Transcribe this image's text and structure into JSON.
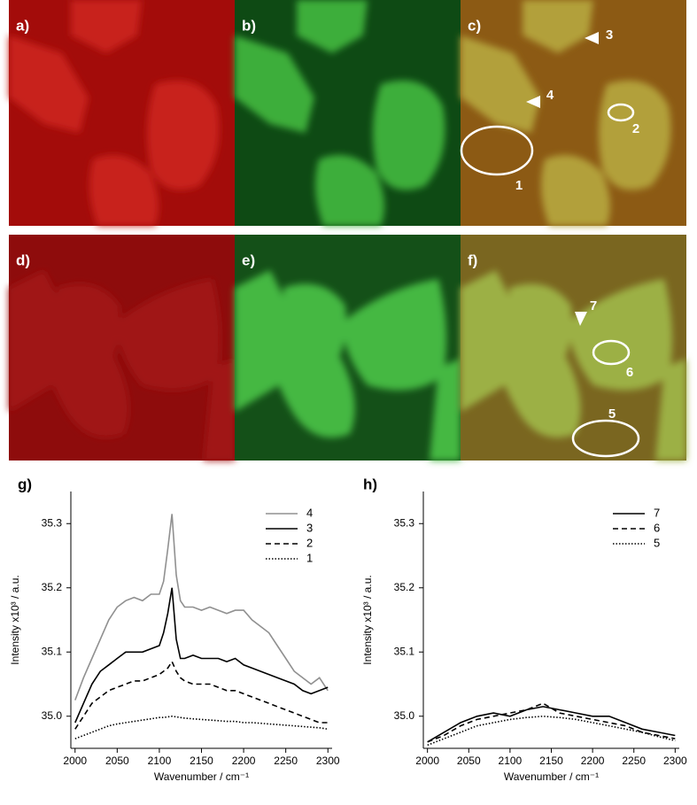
{
  "panels": {
    "labels": [
      "a)",
      "b)",
      "c)",
      "d)",
      "e)",
      "f)"
    ],
    "annotations": [
      "1",
      "2",
      "3",
      "4",
      "5",
      "6",
      "7"
    ]
  },
  "chart_data": [
    {
      "type": "line",
      "panel_label": "g)",
      "xlabel": "Wavenumber / cm⁻¹",
      "ylabel": "Intensity x10³ / a.u.",
      "x": [
        2000,
        2010,
        2020,
        2030,
        2040,
        2050,
        2060,
        2070,
        2080,
        2090,
        2100,
        2105,
        2110,
        2115,
        2120,
        2125,
        2130,
        2140,
        2150,
        2160,
        2170,
        2180,
        2190,
        2200,
        2210,
        2220,
        2230,
        2240,
        2250,
        2260,
        2270,
        2280,
        2290,
        2300
      ],
      "xlim": [
        1995,
        2305
      ],
      "xticks": [
        2000,
        2050,
        2100,
        2150,
        2200,
        2250,
        2300
      ],
      "ylim": [
        34.95,
        35.35
      ],
      "yticks": [
        {
          "value": 35,
          "label": "35.0"
        },
        35.1,
        35.2,
        35.3
      ],
      "legend": "upper right",
      "series": [
        {
          "name": "4",
          "color": "#909090",
          "dash": "solid",
          "values": [
            35.025,
            35.06,
            35.09,
            35.12,
            35.15,
            35.17,
            35.18,
            35.185,
            35.18,
            35.19,
            35.19,
            35.21,
            35.26,
            35.315,
            35.22,
            35.18,
            35.17,
            35.17,
            35.165,
            35.17,
            35.165,
            35.16,
            35.165,
            35.165,
            35.15,
            35.14,
            35.13,
            35.11,
            35.09,
            35.07,
            35.06,
            35.05,
            35.06,
            35.04
          ]
        },
        {
          "name": "3",
          "color": "#000000",
          "dash": "solid",
          "values": [
            34.99,
            35.02,
            35.05,
            35.07,
            35.08,
            35.09,
            35.1,
            35.1,
            35.1,
            35.105,
            35.11,
            35.13,
            35.16,
            35.2,
            35.12,
            35.09,
            35.09,
            35.095,
            35.09,
            35.09,
            35.09,
            35.085,
            35.09,
            35.08,
            35.075,
            35.07,
            35.065,
            35.06,
            35.055,
            35.05,
            35.04,
            35.035,
            35.04,
            35.045
          ]
        },
        {
          "name": "2",
          "color": "#000000",
          "dash": "dashed",
          "values": [
            34.98,
            35.0,
            35.02,
            35.03,
            35.04,
            35.045,
            35.05,
            35.055,
            35.055,
            35.06,
            35.065,
            35.07,
            35.075,
            35.085,
            35.07,
            35.06,
            35.055,
            35.05,
            35.05,
            35.05,
            35.045,
            35.04,
            35.04,
            35.035,
            35.03,
            35.025,
            35.02,
            35.015,
            35.01,
            35.005,
            35.0,
            34.995,
            34.99,
            34.99
          ]
        },
        {
          "name": "1",
          "color": "#000000",
          "dash": "dotted",
          "values": [
            34.965,
            34.97,
            34.975,
            34.98,
            34.985,
            34.988,
            34.99,
            34.992,
            34.994,
            34.996,
            34.998,
            34.998,
            34.999,
            35.0,
            34.999,
            34.998,
            34.997,
            34.996,
            34.995,
            34.994,
            34.993,
            34.992,
            34.992,
            34.99,
            34.99,
            34.989,
            34.988,
            34.987,
            34.986,
            34.985,
            34.984,
            34.983,
            34.982,
            34.98
          ]
        }
      ]
    },
    {
      "type": "line",
      "panel_label": "h)",
      "xlabel": "Wavenumber / cm⁻¹",
      "ylabel": "Intensity x10³ / a.u.",
      "x": [
        2000,
        2020,
        2040,
        2060,
        2080,
        2100,
        2120,
        2140,
        2160,
        2180,
        2200,
        2220,
        2240,
        2260,
        2280,
        2300
      ],
      "xlim": [
        1995,
        2305
      ],
      "xticks": [
        2000,
        2050,
        2100,
        2150,
        2200,
        2250,
        2300
      ],
      "ylim": [
        34.95,
        35.35
      ],
      "yticks": [
        {
          "value": 35,
          "label": "35.0"
        },
        35.1,
        35.2,
        35.3
      ],
      "legend": "upper right",
      "series": [
        {
          "name": "7",
          "color": "#000000",
          "dash": "solid",
          "values": [
            34.96,
            34.975,
            34.99,
            35.0,
            35.005,
            35.0,
            35.01,
            35.015,
            35.01,
            35.005,
            35.0,
            35.0,
            34.99,
            34.98,
            34.975,
            34.97
          ]
        },
        {
          "name": "6",
          "color": "#000000",
          "dash": "dashed",
          "values": [
            34.96,
            34.97,
            34.985,
            34.995,
            35.0,
            35.005,
            35.01,
            35.02,
            35.005,
            35.0,
            34.995,
            34.99,
            34.985,
            34.975,
            34.97,
            34.965
          ]
        },
        {
          "name": "5",
          "color": "#000000",
          "dash": "dotted",
          "values": [
            34.955,
            34.965,
            34.975,
            34.985,
            34.99,
            34.995,
            34.998,
            35.0,
            34.998,
            34.995,
            34.99,
            34.985,
            34.98,
            34.975,
            34.968,
            34.962
          ]
        }
      ]
    }
  ]
}
